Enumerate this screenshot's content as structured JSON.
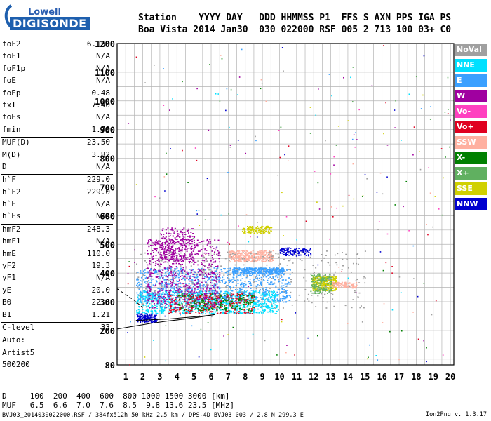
{
  "logo": {
    "top": "Lowell",
    "bottom": "DIGISONDE"
  },
  "header": {
    "line1": "Station    YYYY DAY   DDD HHMMSS P1  FFS S AXN PPS IGA PS",
    "line2": "Boa Vista 2014 Jan30  030 022000 RSF 005 2 713 100 03+ C0"
  },
  "params": [
    [
      {
        "label": "foF2",
        "value": "6.150"
      },
      {
        "label": "foF1",
        "value": "N/A"
      },
      {
        "label": "foF1p",
        "value": "N/A"
      },
      {
        "label": "foE",
        "value": "N/A"
      },
      {
        "label": "foEp",
        "value": "0.48"
      },
      {
        "label": "fxI",
        "value": "7.40"
      },
      {
        "label": "foEs",
        "value": "N/A"
      },
      {
        "label": "fmin",
        "value": "1.70"
      }
    ],
    [
      {
        "label": "MUF(D)",
        "value": "23.50"
      },
      {
        "label": "M(D)",
        "value": "3.82"
      },
      {
        "label": "D",
        "value": "N/A"
      }
    ],
    [
      {
        "label": "h`F",
        "value": "229.0"
      },
      {
        "label": "h`F2",
        "value": "229.0"
      },
      {
        "label": "h`E",
        "value": "N/A"
      },
      {
        "label": "h`Es",
        "value": "N/A"
      }
    ],
    [
      {
        "label": "hmF2",
        "value": "248.3"
      },
      {
        "label": "hmF1",
        "value": "N/A"
      },
      {
        "label": "hmE",
        "value": "110.0"
      },
      {
        "label": "yF2",
        "value": "19.3"
      },
      {
        "label": "yF1",
        "value": "N/A"
      },
      {
        "label": "yE",
        "value": "20.0"
      },
      {
        "label": "B0",
        "value": "22.8"
      },
      {
        "label": "B1",
        "value": "1.21"
      }
    ],
    [
      {
        "label": "C-level",
        "value": "33"
      }
    ]
  ],
  "auto": {
    "line1": "Auto:",
    "line2": "Artist5",
    "line3": "500200"
  },
  "legend": [
    {
      "label": "NoVal",
      "color": "#a0a0a0"
    },
    {
      "label": "NNE",
      "color": "#00e0ff"
    },
    {
      "label": "E",
      "color": "#3aa0ff"
    },
    {
      "label": "W",
      "color": "#a000a0"
    },
    {
      "label": "Vo-",
      "color": "#ff40c0"
    },
    {
      "label": "Vo+",
      "color": "#e00020"
    },
    {
      "label": "SSW",
      "color": "#ffb0a0"
    },
    {
      "label": "X-",
      "color": "#008000"
    },
    {
      "label": "X+",
      "color": "#60b060"
    },
    {
      "label": "SSE",
      "color": "#d0d000"
    },
    {
      "label": "NNW",
      "color": "#0000d0"
    }
  ],
  "footer": {
    "line1": "D     100  200  400  600  800 1000 1500 3000 [km]",
    "line2": "MUF   6.5  6.6  7.0  7.6  8.5  9.8 13.6 23.5 [MHz]",
    "line3": "BVJ03_2014030022000.RSF / 384fx512h 50 kHz 2.5 km / DPS-4D BVJ03 003 / 2.8 N 299.3 E",
    "version": "Ion2Png v. 1.3.17"
  },
  "chart_data": {
    "type": "scatter",
    "xlim": [
      0.5,
      20.2
    ],
    "ylim": [
      80,
      1200
    ],
    "x_ticks": [
      1,
      2,
      3,
      4,
      5,
      6,
      7,
      8,
      9,
      10,
      11,
      12,
      13,
      14,
      15,
      16,
      17,
      18,
      19,
      20
    ],
    "y_ticks": [
      80,
      200,
      300,
      400,
      500,
      600,
      700,
      800,
      900,
      1000,
      1100,
      1200
    ],
    "grid": true,
    "x_unit": "MHz",
    "y_unit": "km",
    "clusters": [
      {
        "series": "NNE",
        "x": [
          1.6,
          9.9
        ],
        "y": [
          260,
          340
        ],
        "n": 900
      },
      {
        "series": "E",
        "x": [
          1.6,
          10.6
        ],
        "y": [
          300,
          420
        ],
        "n": 900
      },
      {
        "series": "E",
        "x": [
          7.2,
          10.2
        ],
        "y": [
          400,
          420
        ],
        "n": 300
      },
      {
        "series": "W",
        "x": [
          2.2,
          6.5
        ],
        "y": [
          280,
          520
        ],
        "n": 700
      },
      {
        "series": "W",
        "x": [
          3.0,
          5.0
        ],
        "y": [
          440,
          560
        ],
        "n": 250
      },
      {
        "series": "SSW",
        "x": [
          7.0,
          9.6
        ],
        "y": [
          440,
          480
        ],
        "n": 350
      },
      {
        "series": "SSE",
        "x": [
          7.8,
          9.5
        ],
        "y": [
          540,
          565
        ],
        "n": 120
      },
      {
        "series": "SSE",
        "x": [
          11.9,
          13.3
        ],
        "y": [
          340,
          390
        ],
        "n": 300
      },
      {
        "series": "X+",
        "x": [
          11.8,
          13.0
        ],
        "y": [
          330,
          400
        ],
        "n": 150
      },
      {
        "series": "Vo+",
        "x": [
          3.5,
          8.5
        ],
        "y": [
          260,
          330
        ],
        "n": 250
      },
      {
        "series": "X-",
        "x": [
          4.0,
          8.5
        ],
        "y": [
          270,
          330
        ],
        "n": 200
      },
      {
        "series": "NNW",
        "x": [
          10.0,
          11.8
        ],
        "y": [
          460,
          490
        ],
        "n": 120
      },
      {
        "series": "NNW",
        "x": [
          1.6,
          2.8
        ],
        "y": [
          230,
          260
        ],
        "n": 150
      },
      {
        "series": "NoVal",
        "x": [
          1.6,
          15.0
        ],
        "y": [
          280,
          480
        ],
        "n": 350
      },
      {
        "series": "SSW",
        "x": [
          13.0,
          14.5
        ],
        "y": [
          350,
          370
        ],
        "n": 100
      }
    ],
    "traces": [
      {
        "name": "O-trace",
        "points": [
          [
            1.6,
            235
          ],
          [
            2.5,
            237
          ],
          [
            3.5,
            240
          ],
          [
            4.5,
            245
          ],
          [
            5.5,
            250
          ],
          [
            6.2,
            255
          ]
        ]
      },
      {
        "name": "low-trace",
        "points": [
          [
            0.5,
            205
          ],
          [
            1.5,
            215
          ],
          [
            2.5,
            225
          ],
          [
            3.5,
            233
          ],
          [
            4.5,
            240
          ],
          [
            5.5,
            248
          ],
          [
            6.2,
            255
          ]
        ]
      },
      {
        "name": "dashed-trace",
        "points": [
          [
            0.5,
            345
          ],
          [
            1.0,
            325
          ],
          [
            1.5,
            305
          ],
          [
            2.0,
            280
          ]
        ]
      }
    ],
    "sparse_noise": {
      "x": [
        1.0,
        20.0
      ],
      "y": [
        80,
        1200
      ],
      "n": 260
    }
  }
}
